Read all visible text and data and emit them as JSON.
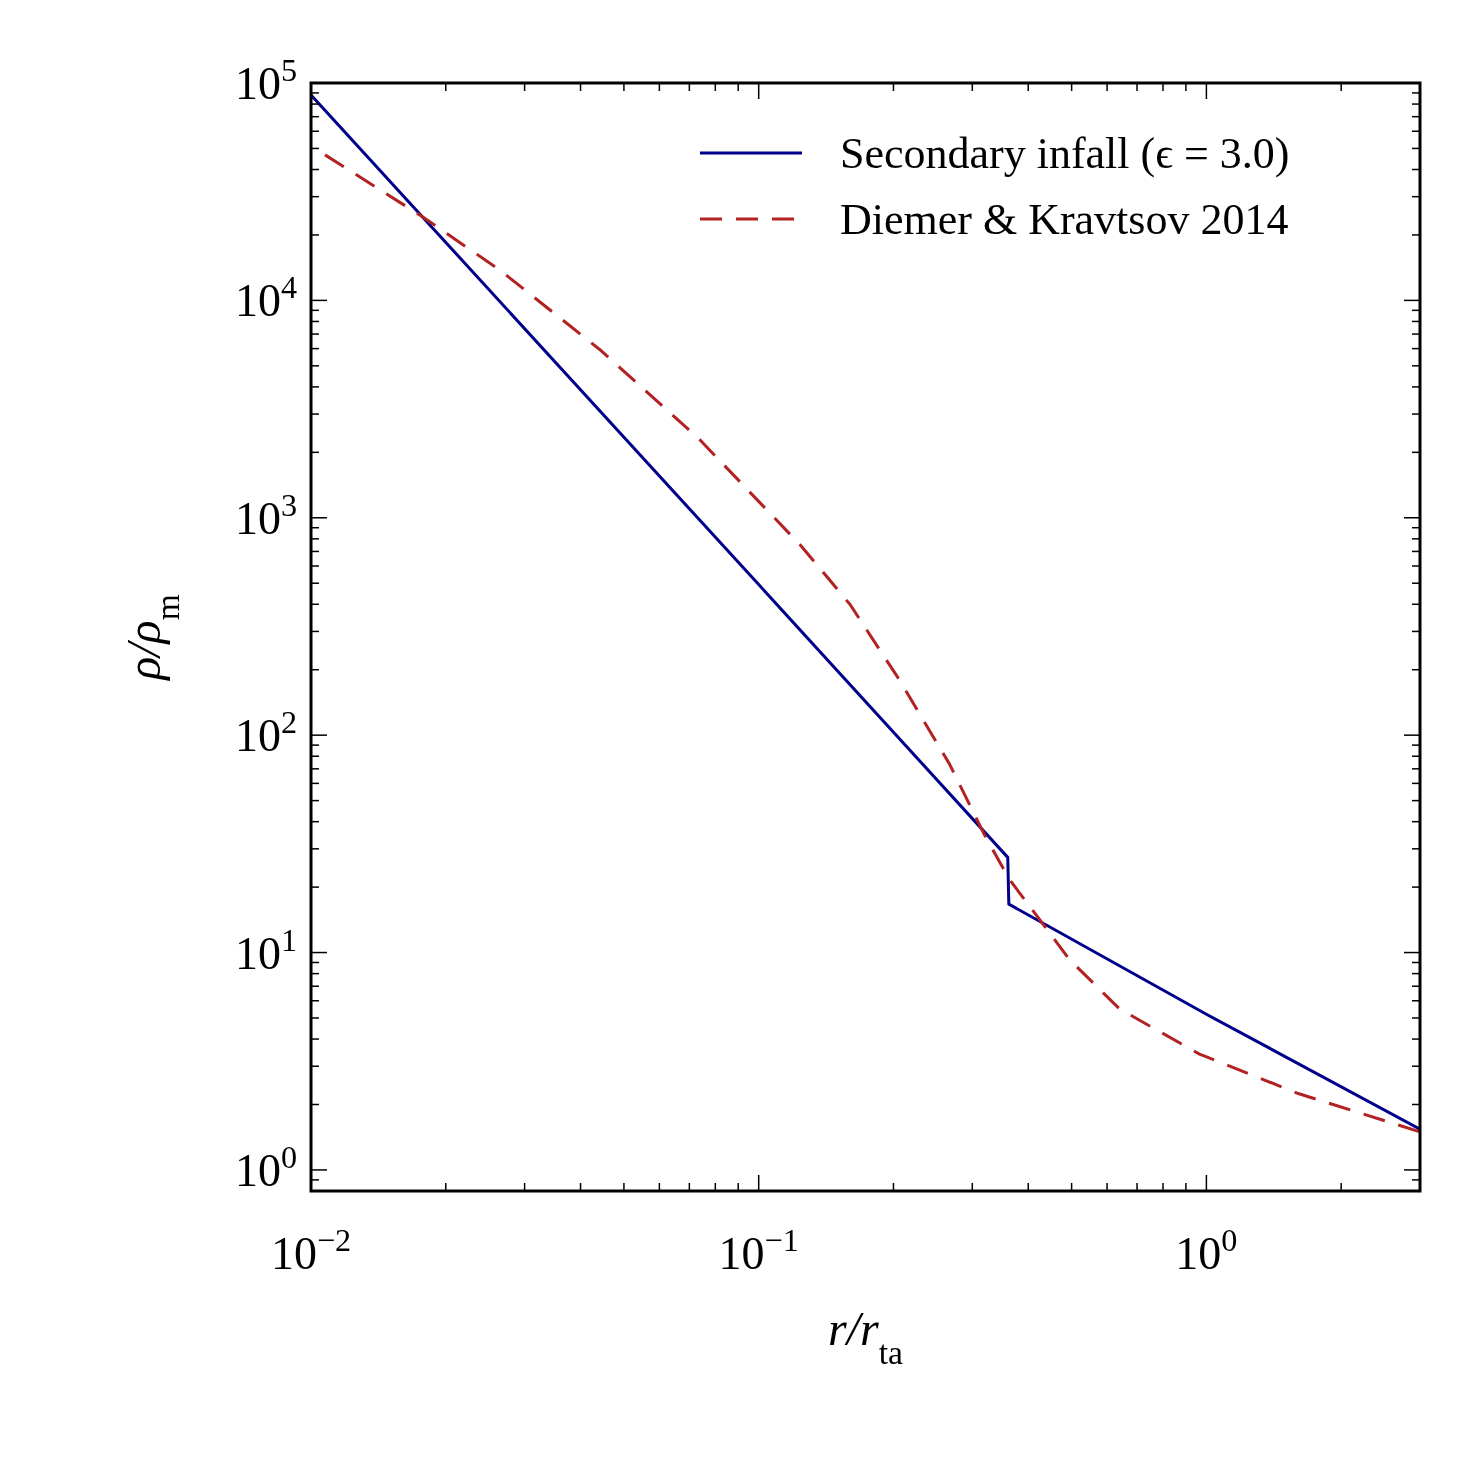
{
  "chart_data": {
    "type": "line",
    "xlabel": "r/r$_{ta}$",
    "ylabel": "ρ/ρ$_{m}$",
    "log": "xy",
    "grid": false,
    "legend": "top right",
    "xlim": [
      0.01,
      3
    ],
    "ylim": [
      0.8,
      100000
    ],
    "xticks": [
      {
        "value": 0.01,
        "label": "10$^{−2}$"
      },
      {
        "value": 0.02,
        "label": null
      },
      {
        "value": 0.03,
        "label": null
      },
      {
        "value": 0.04,
        "label": null
      },
      {
        "value": 0.05,
        "label": null
      },
      {
        "value": 0.06,
        "label": null
      },
      {
        "value": 0.07,
        "label": null
      },
      {
        "value": 0.08,
        "label": null
      },
      {
        "value": 0.09,
        "label": null
      },
      {
        "value": 0.1,
        "label": "10$^{−1}$"
      },
      {
        "value": 0.2,
        "label": null
      },
      {
        "value": 0.3,
        "label": null
      },
      {
        "value": 0.4,
        "label": null
      },
      {
        "value": 0.5,
        "label": null
      },
      {
        "value": 0.6,
        "label": null
      },
      {
        "value": 0.7,
        "label": null
      },
      {
        "value": 0.8,
        "label": null
      },
      {
        "value": 0.9,
        "label": null
      },
      {
        "value": 1,
        "label": "10$^{0}$"
      },
      {
        "value": 2,
        "label": null
      }
    ],
    "yticks": [
      {
        "value": 0.9,
        "label": null
      },
      {
        "value": 1,
        "label": "10$^{0}$"
      },
      {
        "value": 2,
        "label": null
      },
      {
        "value": 3,
        "label": null
      },
      {
        "value": 4,
        "label": null
      },
      {
        "value": 5,
        "label": null
      },
      {
        "value": 6,
        "label": null
      },
      {
        "value": 7,
        "label": null
      },
      {
        "value": 8,
        "label": null
      },
      {
        "value": 9,
        "label": null
      },
      {
        "value": 10,
        "label": "10$^{1}$"
      },
      {
        "value": 20,
        "label": null
      },
      {
        "value": 30,
        "label": null
      },
      {
        "value": 40,
        "label": null
      },
      {
        "value": 50,
        "label": null
      },
      {
        "value": 60,
        "label": null
      },
      {
        "value": 70,
        "label": null
      },
      {
        "value": 80,
        "label": null
      },
      {
        "value": 90,
        "label": null
      },
      {
        "value": 100,
        "label": "10$^{2}$"
      },
      {
        "value": 200,
        "label": null
      },
      {
        "value": 300,
        "label": null
      },
      {
        "value": 400,
        "label": null
      },
      {
        "value": 500,
        "label": null
      },
      {
        "value": 600,
        "label": null
      },
      {
        "value": 700,
        "label": null
      },
      {
        "value": 800,
        "label": null
      },
      {
        "value": 900,
        "label": null
      },
      {
        "value": 1000,
        "label": "10$^{3}$"
      },
      {
        "value": 2000,
        "label": null
      },
      {
        "value": 3000,
        "label": null
      },
      {
        "value": 4000,
        "label": null
      },
      {
        "value": 5000,
        "label": null
      },
      {
        "value": 6000,
        "label": null
      },
      {
        "value": 7000,
        "label": null
      },
      {
        "value": 8000,
        "label": null
      },
      {
        "value": 9000,
        "label": null
      },
      {
        "value": 10000,
        "label": "10$^{4}$"
      },
      {
        "value": 20000,
        "label": null
      },
      {
        "value": 30000,
        "label": null
      },
      {
        "value": 40000,
        "label": null
      },
      {
        "value": 50000,
        "label": null
      },
      {
        "value": 60000,
        "label": null
      },
      {
        "value": 70000,
        "label": null
      },
      {
        "value": 80000,
        "label": null
      },
      {
        "value": 90000,
        "label": null
      },
      {
        "value": 100000,
        "label": "10$^{5}$"
      }
    ],
    "series": [
      {
        "name": "Secondary infall (ϵ = 3.0)",
        "color": "#00008b",
        "line_style": "solid",
        "x": [
          0.01,
          0.1,
          0.36,
          0.362,
          1.0,
          3.0
        ],
        "values": [
          88000,
          493,
          27.4,
          16.7,
          5.2,
          1.54
        ]
      },
      {
        "name": "Diemer & Kravtsov 2014",
        "color": "#b22222",
        "line_style": "dashed",
        "x": [
          0.01075,
          0.0175,
          0.0264,
          0.0442,
          0.0738,
          0.1236,
          0.16,
          0.206,
          0.267,
          0.319,
          0.363,
          0.424,
          0.494,
          0.64,
          0.965,
          1.61,
          2.99
        ],
        "values": [
          46700,
          24700,
          13800,
          5930,
          2290,
          753,
          399,
          180,
          73.4,
          35,
          21.7,
          14.2,
          9.3,
          5.5,
          3.41,
          2.24,
          1.5
        ]
      }
    ]
  }
}
